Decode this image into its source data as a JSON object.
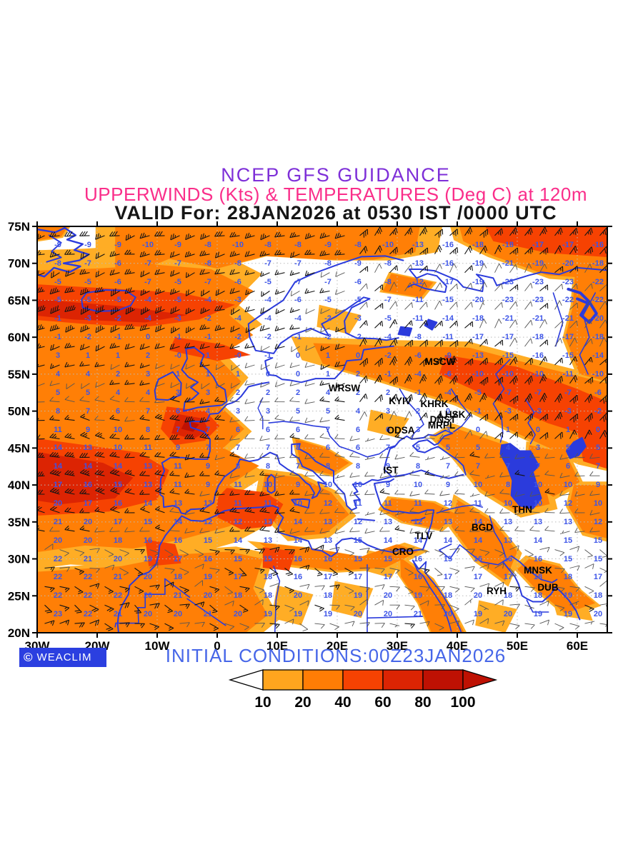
{
  "title": {
    "line1": "NCEP GFS GUIDANCE",
    "line1_color": "#7E2FD8",
    "line2": "UPPERWINDS (Kts) & TEMPERATURES (Deg C) at 120m",
    "line2_color": "#FA2E8A",
    "line3": "VALID For: 28JAN2026 at 0530 IST /0000 UTC",
    "line3_color": "#161616"
  },
  "axes": {
    "lat_labels": [
      "75N",
      "70N",
      "65N",
      "60N",
      "55N",
      "50N",
      "45N",
      "40N",
      "35N",
      "30N",
      "25N",
      "20N"
    ],
    "lat_values": [
      75,
      70,
      65,
      60,
      55,
      50,
      45,
      40,
      35,
      30,
      25,
      20
    ],
    "lon_labels": [
      "30W",
      "20W",
      "10W",
      "0",
      "10E",
      "20E",
      "30E",
      "40E",
      "50E",
      "60E"
    ],
    "lon_values": [
      -30,
      -20,
      -10,
      0,
      10,
      20,
      30,
      40,
      50,
      60
    ]
  },
  "footer": {
    "logo_text": "WEACLIM",
    "logo_copyright": "©",
    "logo_bg": "#2B3FE0",
    "initial_conditions": "INITIAL CONDITIONS:00Z23JAN2026",
    "initial_color": "#4666E8"
  },
  "colorbar": {
    "levels": [
      "10",
      "20",
      "40",
      "60",
      "80",
      "100"
    ],
    "colors": [
      "#FFA51E",
      "#FF7D05",
      "#F64202",
      "#DC2403",
      "#BE1103"
    ],
    "left_arrow_color": "#FFFFFF",
    "right_arrow_color": "#BE1103",
    "outline": "#000000"
  },
  "map_colors": {
    "coast": "#2B3BDC",
    "temp_text": "#3D55E8",
    "barb": "#141414",
    "barb_light": "#555555",
    "graticule": "#BBBBBB",
    "frame": "#000000",
    "level1": "#FFAD25",
    "level2": "#FF7F06",
    "level3": "#F64202",
    "level4": "#DC2403",
    "level5": "#BE1103",
    "white": "#FFFFFF"
  },
  "stations": [
    {
      "name": "MSCW",
      "lon": 37.2,
      "lat": 56.2
    },
    {
      "name": "WRSW",
      "lon": 21.2,
      "lat": 52.7
    },
    {
      "name": "KYIV",
      "lon": 30.5,
      "lat": 50.9
    },
    {
      "name": "KHRK",
      "lon": 36.2,
      "lat": 50.5
    },
    {
      "name": "LHSK",
      "lon": 39.2,
      "lat": 49.1
    },
    {
      "name": "DNST",
      "lon": 37.6,
      "lat": 48.4
    },
    {
      "name": "MRPL",
      "lon": 37.4,
      "lat": 47.6
    },
    {
      "name": "ODSA",
      "lon": 30.6,
      "lat": 47.0
    },
    {
      "name": "IST",
      "lon": 28.9,
      "lat": 41.6
    },
    {
      "name": "THN",
      "lon": 50.8,
      "lat": 36.2
    },
    {
      "name": "BGD",
      "lon": 44.2,
      "lat": 33.8
    },
    {
      "name": "TLV",
      "lon": 34.4,
      "lat": 32.7
    },
    {
      "name": "CRO",
      "lon": 31.0,
      "lat": 30.5
    },
    {
      "name": "MNSK",
      "lon": 53.4,
      "lat": 28.0
    },
    {
      "name": "RYH",
      "lon": 46.5,
      "lat": 25.2
    },
    {
      "name": "DUB",
      "lon": 55.1,
      "lat": 25.7
    }
  ],
  "wind_regions": [
    {
      "lv": 2,
      "pts": [
        [
          -17,
          76
        ],
        [
          34,
          76
        ],
        [
          33,
          71.5
        ],
        [
          26,
          70.5
        ],
        [
          18,
          70.5
        ],
        [
          8,
          71
        ],
        [
          0,
          69.3
        ],
        [
          -8,
          70.6
        ],
        [
          -14,
          68.6
        ],
        [
          -17,
          69.5
        ]
      ]
    },
    {
      "lv": 2,
      "pts": [
        [
          -31,
          69
        ],
        [
          -20,
          69.3
        ],
        [
          -10,
          69.8
        ],
        [
          -1,
          69.2
        ],
        [
          6,
          66.3
        ],
        [
          2,
          63
        ],
        [
          6,
          60.3
        ],
        [
          0,
          57.3
        ],
        [
          4,
          54
        ],
        [
          0.5,
          50.6
        ],
        [
          4.5,
          47.6
        ],
        [
          1,
          45
        ],
        [
          7,
          42.6
        ],
        [
          2,
          40
        ],
        [
          8,
          37
        ],
        [
          2,
          34.4
        ],
        [
          -6,
          32.6
        ],
        [
          -14,
          31.4
        ],
        [
          -22,
          31.8
        ],
        [
          -31,
          30.8
        ]
      ]
    },
    {
      "lv": 2,
      "pts": [
        [
          -31,
          28.2
        ],
        [
          -16,
          29
        ],
        [
          -6,
          30.6
        ],
        [
          2,
          31
        ],
        [
          7.6,
          30
        ],
        [
          6,
          26
        ],
        [
          8.4,
          22.4
        ],
        [
          4,
          19.5
        ],
        [
          -31,
          19.5
        ]
      ]
    },
    {
      "lv": 2,
      "pts": [
        [
          7,
          32.2
        ],
        [
          16,
          31.4
        ],
        [
          24,
          30.3
        ],
        [
          30,
          32
        ],
        [
          33.5,
          31
        ],
        [
          28,
          28.8
        ],
        [
          20,
          28.4
        ],
        [
          12,
          29.2
        ]
      ]
    },
    {
      "lv": 2,
      "pts": [
        [
          30.5,
          30.2
        ],
        [
          36,
          27
        ],
        [
          39.5,
          22.6
        ],
        [
          41.5,
          19.5
        ],
        [
          36,
          19.5
        ],
        [
          33.6,
          24
        ],
        [
          30.6,
          27.6
        ]
      ]
    },
    {
      "lv": 2,
      "pts": [
        [
          16,
          59.2
        ],
        [
          30,
          58.8
        ],
        [
          42,
          58.6
        ],
        [
          54,
          56
        ],
        [
          65.8,
          53.6
        ],
        [
          65.8,
          42.6
        ],
        [
          58,
          44
        ],
        [
          50,
          47
        ],
        [
          40,
          51
        ],
        [
          28,
          54
        ],
        [
          17.6,
          56.4
        ]
      ]
    },
    {
      "lv": 2,
      "pts": [
        [
          40,
          47.6
        ],
        [
          48,
          45.4
        ],
        [
          54,
          42
        ],
        [
          55.4,
          37.4
        ],
        [
          50,
          36.4
        ],
        [
          44,
          39.4
        ],
        [
          40,
          43.4
        ],
        [
          36.6,
          46
        ]
      ]
    },
    {
      "lv": 2,
      "pts": [
        [
          40,
          76
        ],
        [
          65.8,
          76
        ],
        [
          65.8,
          67.8
        ],
        [
          55,
          68.4
        ],
        [
          46,
          71
        ],
        [
          41,
          73
        ]
      ]
    },
    {
      "lv": 2,
      "pts": [
        [
          59.6,
          68.4
        ],
        [
          65.8,
          68.2
        ],
        [
          65.8,
          53.8
        ],
        [
          60.4,
          55
        ],
        [
          58,
          60
        ],
        [
          59.2,
          64
        ]
      ]
    },
    {
      "lv": 2,
      "pts": [
        [
          29,
          68.6
        ],
        [
          36,
          67.4
        ],
        [
          34,
          65.4
        ],
        [
          27.6,
          66.2
        ]
      ]
    },
    {
      "lv": 2,
      "pts": [
        [
          8,
          41.6
        ],
        [
          14,
          41
        ],
        [
          19,
          39
        ],
        [
          22,
          36
        ],
        [
          18,
          33.4
        ],
        [
          12,
          33
        ],
        [
          9,
          35.4
        ],
        [
          7.4,
          39
        ]
      ]
    },
    {
      "lv": 2,
      "pts": [
        [
          13,
          46.2
        ],
        [
          18,
          45
        ],
        [
          22,
          43
        ],
        [
          19,
          41.4
        ],
        [
          14,
          42.4
        ]
      ]
    },
    {
      "lv": 2,
      "pts": [
        [
          29,
          38.2
        ],
        [
          36,
          37.6
        ],
        [
          40,
          36
        ],
        [
          37,
          34
        ],
        [
          31,
          35
        ],
        [
          27.6,
          36.6
        ]
      ]
    },
    {
      "lv": 2,
      "pts": [
        [
          -6.4,
          42
        ],
        [
          -2,
          41.6
        ],
        [
          -1,
          39.4
        ],
        [
          -4,
          38
        ],
        [
          -7,
          39.2
        ]
      ]
    },
    {
      "lv": 2,
      "pts": [
        [
          59.4,
          40
        ],
        [
          65.8,
          40
        ],
        [
          65.8,
          32.6
        ],
        [
          61,
          33.6
        ],
        [
          58.6,
          37
        ]
      ]
    },
    {
      "lv": 2,
      "pts": [
        [
          52,
          45.4
        ],
        [
          58,
          44.4
        ],
        [
          60.4,
          40.4
        ],
        [
          56,
          38.4
        ],
        [
          51.6,
          40.4
        ]
      ]
    },
    {
      "lv": 2,
      "pts": [
        [
          -31,
          76
        ],
        [
          -24,
          76
        ],
        [
          -26,
          73.6
        ],
        [
          -31,
          73
        ]
      ]
    },
    {
      "lv": 2,
      "pts": [
        [
          40,
          38
        ],
        [
          46,
          35
        ],
        [
          50,
          31
        ],
        [
          48,
          27
        ],
        [
          43,
          30
        ],
        [
          39,
          34.4
        ]
      ]
    },
    {
      "lv": 2,
      "pts": [
        [
          52,
          30
        ],
        [
          57,
          29
        ],
        [
          60,
          26
        ],
        [
          63,
          24
        ],
        [
          58,
          22.6
        ],
        [
          53,
          26
        ],
        [
          50,
          28.6
        ]
      ]
    },
    {
      "lv": 1,
      "pts": [
        [
          10,
          26.4
        ],
        [
          16,
          25.2
        ],
        [
          14,
          21
        ],
        [
          9,
          22
        ]
      ]
    },
    {
      "lv": 1,
      "pts": [
        [
          19.6,
          27
        ],
        [
          26,
          26
        ],
        [
          24,
          22
        ],
        [
          19,
          23
        ]
      ]
    },
    {
      "lv": 1,
      "pts": [
        [
          43.6,
          24.4
        ],
        [
          50,
          23.2
        ],
        [
          48,
          20
        ],
        [
          43,
          21
        ]
      ]
    },
    {
      "lv": 1,
      "pts": [
        [
          17,
          64.4
        ],
        [
          24,
          63
        ],
        [
          22,
          60.4
        ],
        [
          16.6,
          61.4
        ]
      ]
    },
    {
      "lv": 1,
      "pts": [
        [
          25.6,
          50.2
        ],
        [
          32,
          49
        ],
        [
          30,
          46.4
        ],
        [
          25,
          47.4
        ]
      ]
    },
    {
      "lv": 1,
      "pts": [
        [
          25,
          31.2
        ],
        [
          31,
          30.2
        ],
        [
          29,
          27.4
        ],
        [
          24.6,
          28.4
        ]
      ]
    },
    {
      "lv": 1,
      "pts": [
        [
          55,
          27
        ],
        [
          60.6,
          26
        ],
        [
          62.6,
          21.6
        ],
        [
          56.6,
          22.4
        ]
      ]
    },
    {
      "lv": 3,
      "pts": [
        [
          -31,
          67.2
        ],
        [
          -18,
          66.6
        ],
        [
          -6,
          66
        ],
        [
          3,
          64.4
        ],
        [
          -3,
          62.4
        ],
        [
          -12,
          61.4
        ],
        [
          -22,
          61.8
        ],
        [
          -31,
          62.4
        ]
      ]
    },
    {
      "lv": 3,
      "pts": [
        [
          -7,
          60
        ],
        [
          1,
          59
        ],
        [
          5.6,
          57.6
        ],
        [
          0,
          56.8
        ],
        [
          -8,
          58.2
        ]
      ]
    },
    {
      "lv": 3,
      "pts": [
        [
          -31,
          46.4
        ],
        [
          -13,
          44.4
        ],
        [
          -8,
          42
        ],
        [
          -10,
          38
        ],
        [
          -18,
          36.4
        ],
        [
          -31,
          35.8
        ]
      ]
    },
    {
      "lv": 3,
      "pts": [
        [
          -8.4,
          50.6
        ],
        [
          -2,
          50
        ],
        [
          0.4,
          48
        ],
        [
          -2,
          46
        ],
        [
          -7,
          45.4
        ],
        [
          -9.4,
          47.6
        ]
      ]
    },
    {
      "lv": 3,
      "pts": [
        [
          1.6,
          39.6
        ],
        [
          8,
          39
        ],
        [
          11,
          37.4
        ],
        [
          9,
          34.4
        ],
        [
          4,
          34
        ],
        [
          -0.4,
          35.8
        ],
        [
          0.2,
          38.4
        ]
      ]
    },
    {
      "lv": 3,
      "pts": [
        [
          38,
          57.6
        ],
        [
          50,
          56
        ],
        [
          60,
          53
        ],
        [
          65.8,
          51
        ],
        [
          65.8,
          45.6
        ],
        [
          55,
          48.4
        ],
        [
          45,
          52
        ],
        [
          37,
          55
        ]
      ]
    },
    {
      "lv": 3,
      "pts": [
        [
          44,
          76
        ],
        [
          65.8,
          76
        ],
        [
          65.8,
          70.8
        ],
        [
          55,
          71.4
        ],
        [
          46,
          73
        ]
      ]
    },
    {
      "lv": 3,
      "pts": [
        [
          60,
          47.4
        ],
        [
          65.8,
          47.6
        ],
        [
          65.8,
          42
        ],
        [
          61,
          43.2
        ]
      ]
    },
    {
      "lv": 3,
      "pts": [
        [
          -12,
          32.6
        ],
        [
          -7,
          32
        ],
        [
          -6,
          29.4
        ],
        [
          -11.4,
          29
        ]
      ]
    },
    {
      "lv": 3,
      "pts": [
        [
          7.6,
          31.6
        ],
        [
          13,
          31
        ],
        [
          12,
          28.4
        ],
        [
          7.6,
          28.8
        ]
      ]
    },
    {
      "lv": 4,
      "pts": [
        [
          -31,
          65.2
        ],
        [
          -16,
          64.2
        ],
        [
          -5,
          63
        ],
        [
          -12,
          62
        ],
        [
          -24,
          62.4
        ],
        [
          -31,
          63
        ]
      ]
    },
    {
      "lv": 4,
      "pts": [
        [
          -31,
          44.6
        ],
        [
          -19,
          43
        ],
        [
          -14,
          41
        ],
        [
          -17,
          38.2
        ],
        [
          -26,
          37.4
        ],
        [
          -31,
          38
        ]
      ]
    },
    {
      "lv": 4,
      "pts": [
        [
          -6.6,
          49.6
        ],
        [
          -2.4,
          49
        ],
        [
          -1.4,
          47.4
        ],
        [
          -4,
          46.2
        ],
        [
          -7.6,
          47
        ]
      ]
    },
    {
      "lv": 5,
      "pts": [
        [
          -5.2,
          48.8
        ],
        [
          -3,
          48.2
        ],
        [
          -4,
          47.2
        ],
        [
          -6,
          47.6
        ]
      ]
    },
    {
      "lv": 0,
      "pts": [
        [
          -22,
          66
        ],
        [
          -15,
          66.2
        ],
        [
          -13.8,
          64.8
        ],
        [
          -17,
          63.6
        ],
        [
          -21.6,
          64.2
        ]
      ]
    }
  ],
  "field_params": {
    "temp_base": 21.5,
    "temp_lat_coeff": 0.58,
    "ne_chill_amp": 18,
    "atlantic_warm_amp": 8,
    "barents_mod_amp": 5,
    "wind_bands_kt": {
      "north_band": 32,
      "atlantic_band": 30,
      "brittany_max": 26,
      "east_diag": 20,
      "top_edge": 16,
      "west_med": 14,
      "south_trades": 8,
      "base": 10
    }
  }
}
